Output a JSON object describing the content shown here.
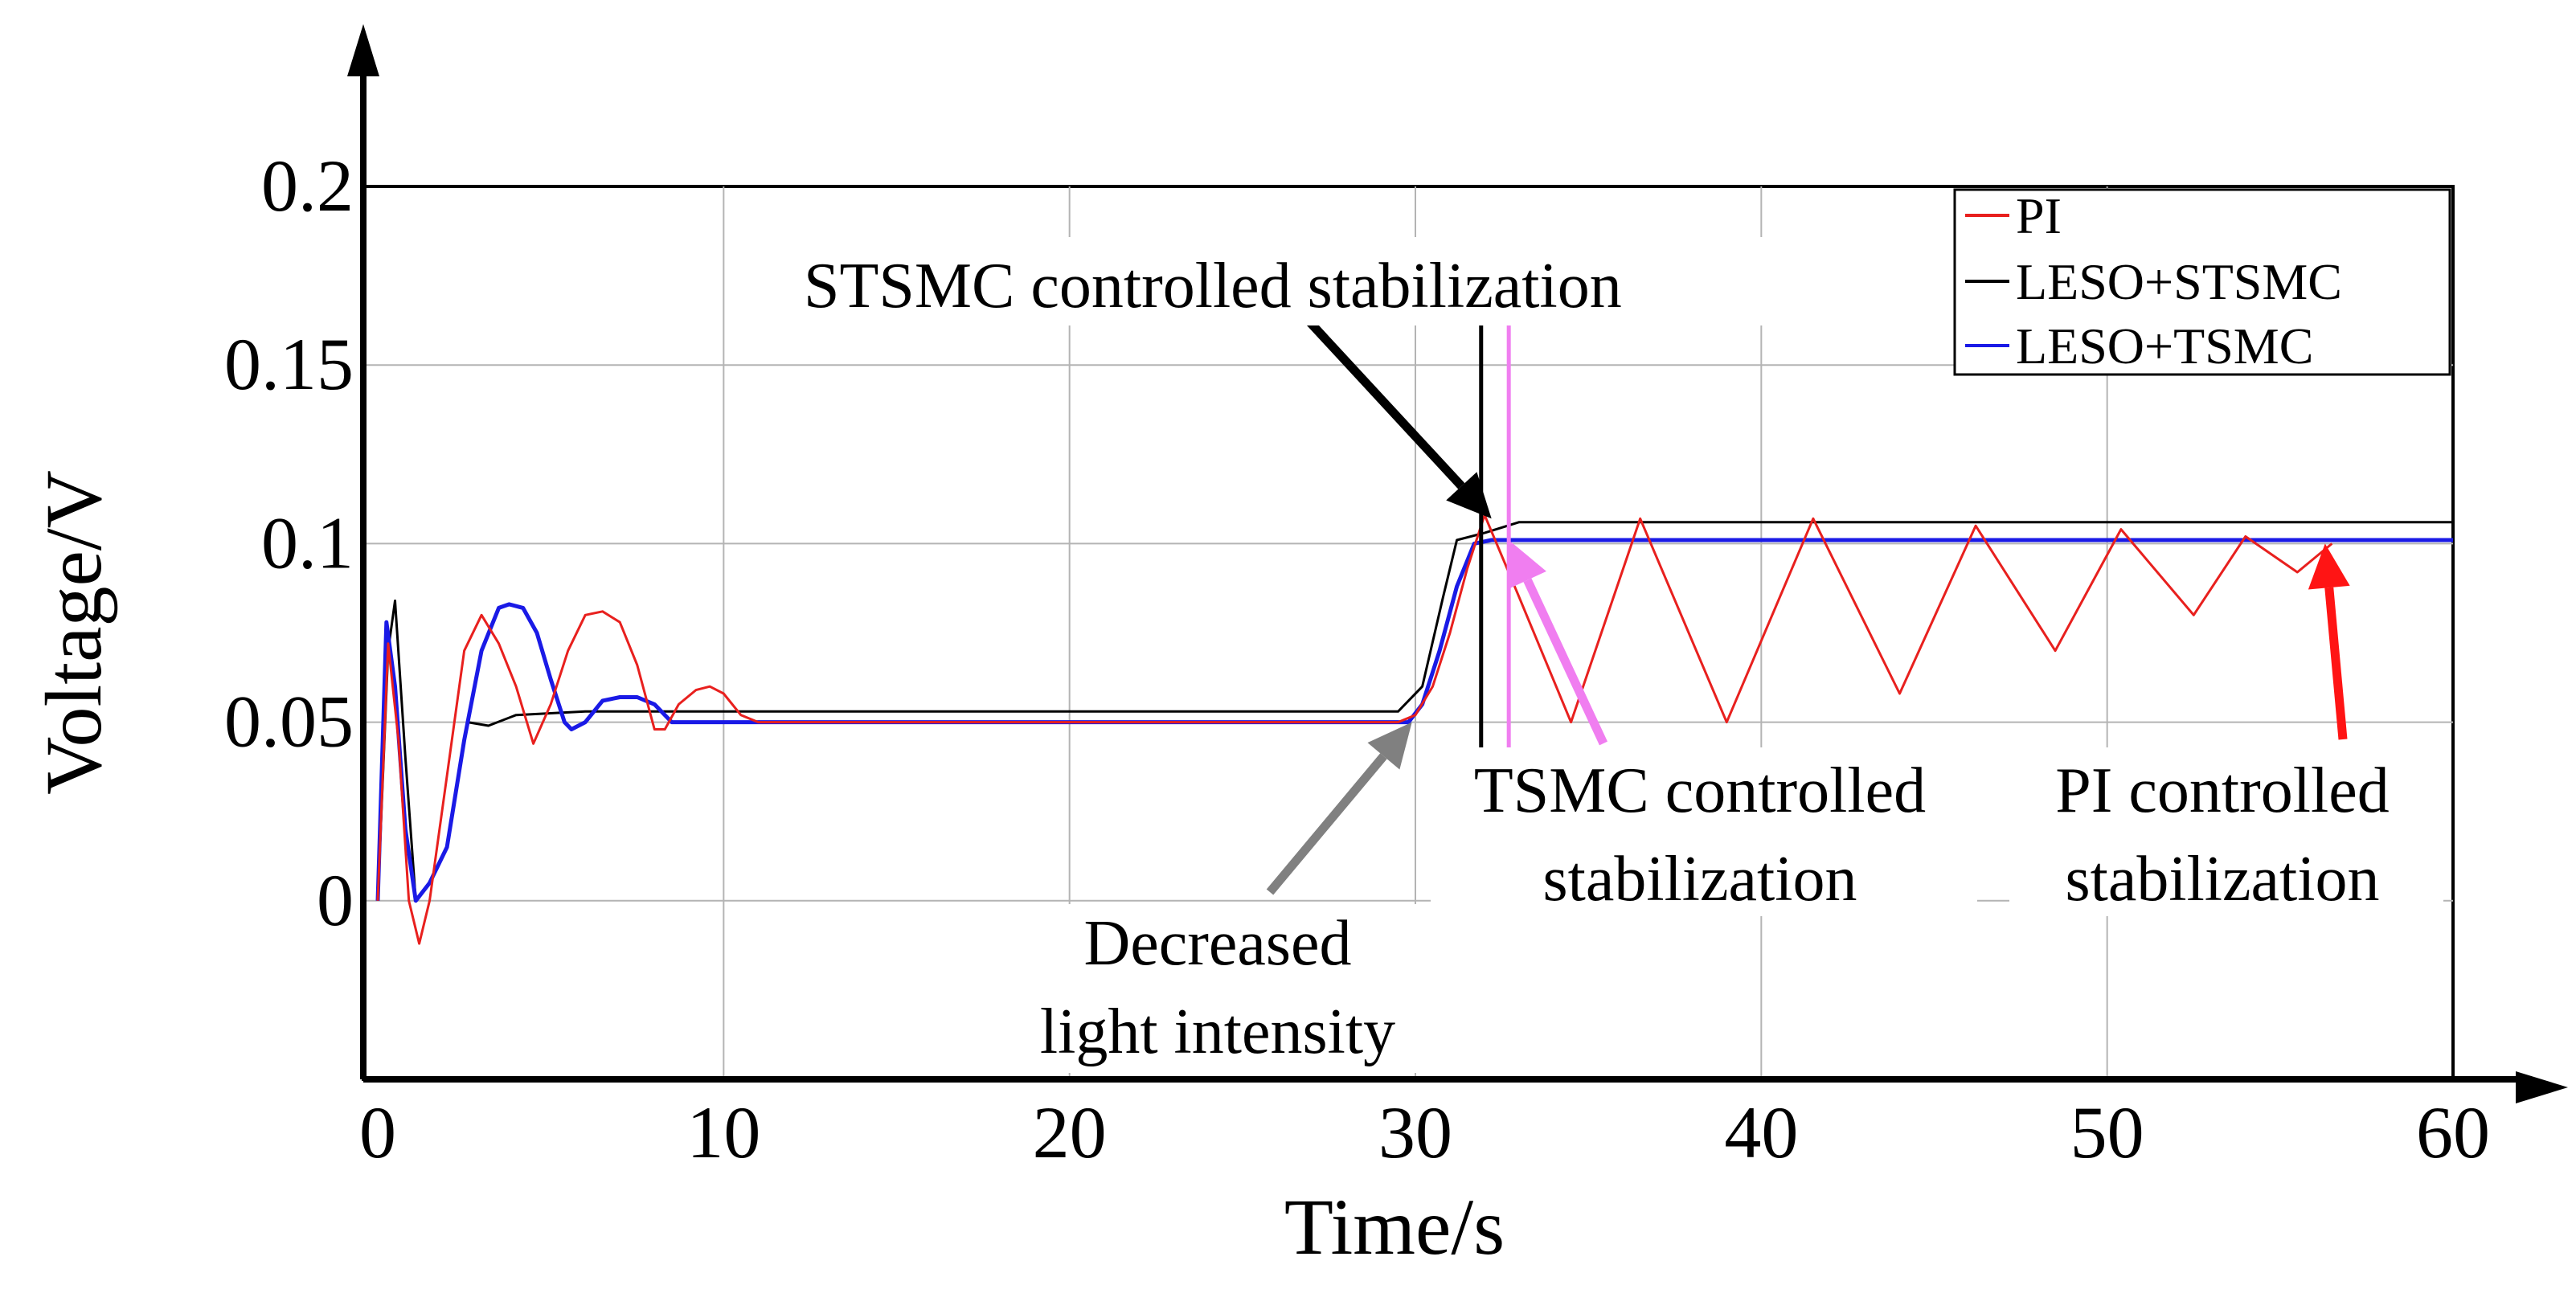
{
  "chart_data": {
    "type": "line",
    "xlabel": "Time/s",
    "ylabel": "Voltage/V",
    "xlim": [
      0,
      60
    ],
    "ylim": [
      -0.05,
      0.2
    ],
    "xticks": [
      0,
      10,
      20,
      30,
      40,
      50,
      60
    ],
    "yticks": [
      0,
      0.05,
      0.1,
      0.15,
      0.2
    ],
    "xtick_labels": [
      "0",
      "10",
      "20",
      "30",
      "40",
      "50",
      "60"
    ],
    "ytick_labels": [
      "0",
      "0.05",
      "0.1",
      "0.15",
      "0.2"
    ],
    "grid": true,
    "legend_position": "top-right",
    "series": [
      {
        "name": "PI",
        "color": "#e8201e",
        "x": [
          0,
          0.3,
          0.6,
          0.9,
          1.2,
          1.5,
          2.0,
          2.5,
          3.0,
          3.5,
          4.0,
          4.5,
          5.0,
          5.5,
          6.0,
          6.5,
          7.0,
          7.5,
          8.0,
          8.3,
          8.7,
          9.2,
          9.6,
          10.0,
          10.5,
          11,
          20,
          29.5,
          30,
          30.5,
          31,
          31.5,
          32.0,
          33.0,
          34.5,
          36.5,
          39.0,
          41.5,
          44.0,
          46.2,
          48.5,
          50.4,
          52.5,
          54.0,
          55.5,
          56.5
        ],
        "y": [
          0.0,
          0.072,
          0.045,
          0.0,
          -0.012,
          0.0,
          0.035,
          0.07,
          0.08,
          0.072,
          0.06,
          0.044,
          0.055,
          0.07,
          0.08,
          0.081,
          0.078,
          0.066,
          0.048,
          0.048,
          0.055,
          0.059,
          0.06,
          0.058,
          0.052,
          0.05,
          0.05,
          0.05,
          0.052,
          0.06,
          0.075,
          0.093,
          0.108,
          0.085,
          0.05,
          0.107,
          0.05,
          0.107,
          0.058,
          0.105,
          0.07,
          0.104,
          0.08,
          0.102,
          0.092,
          0.1
        ]
      },
      {
        "name": "LESO+STSMC",
        "color": "#000000",
        "x": [
          0,
          0.3,
          0.5,
          0.8,
          1.1,
          1.5,
          2.0,
          2.6,
          3.2,
          4.0,
          6.0,
          10,
          20,
          29.5,
          30.2,
          30.8,
          31.2,
          32.0,
          33,
          40,
          50,
          60
        ],
        "y": [
          0.0,
          0.07,
          0.084,
          0.04,
          0.0,
          0.005,
          0.015,
          0.05,
          0.049,
          0.052,
          0.053,
          0.053,
          0.053,
          0.053,
          0.06,
          0.085,
          0.101,
          0.103,
          0.106,
          0.106,
          0.106,
          0.106
        ]
      },
      {
        "name": "LESO+TSMC",
        "color": "#1a1ae6",
        "x": [
          0,
          0.25,
          0.5,
          0.8,
          1.1,
          1.5,
          2.0,
          2.5,
          3.0,
          3.5,
          3.8,
          4.2,
          4.6,
          5.0,
          5.4,
          5.6,
          6.0,
          6.5,
          7.0,
          7.5,
          8.0,
          8.5,
          10,
          20,
          29.8,
          30.2,
          30.7,
          31.2,
          31.7,
          32.2,
          33,
          40,
          50,
          60
        ],
        "y": [
          0.0,
          0.078,
          0.06,
          0.02,
          0.0,
          0.005,
          0.015,
          0.045,
          0.07,
          0.082,
          0.083,
          0.082,
          0.075,
          0.062,
          0.05,
          0.048,
          0.05,
          0.056,
          0.057,
          0.057,
          0.055,
          0.05,
          0.05,
          0.05,
          0.05,
          0.055,
          0.07,
          0.088,
          0.1,
          0.101,
          0.101,
          0.101,
          0.101,
          0.101
        ]
      }
    ],
    "annotations": [
      {
        "lines": [
          "STSMC controlled stabilization"
        ],
        "arrow_color": "#000000",
        "target": [
          32.2,
          0.107
        ]
      },
      {
        "lines": [
          "TSMC controlled",
          "stabilization"
        ],
        "arrow_color": "#f07ef0",
        "target": [
          32.7,
          0.101
        ]
      },
      {
        "lines": [
          "PI controlled",
          "stabilization"
        ],
        "arrow_color": "#ff1414",
        "target": [
          56.3,
          0.1
        ]
      },
      {
        "lines": [
          "Decreased",
          "light intensity"
        ],
        "arrow_color": "#808080",
        "target": [
          29.9,
          0.05
        ]
      }
    ],
    "markers": [
      {
        "x": 31.9,
        "color": "#000000",
        "y_from": 0.04,
        "y_to": 0.17
      },
      {
        "x": 32.7,
        "color": "#f07ef0",
        "y_from": 0.04,
        "y_to": 0.17
      }
    ]
  }
}
